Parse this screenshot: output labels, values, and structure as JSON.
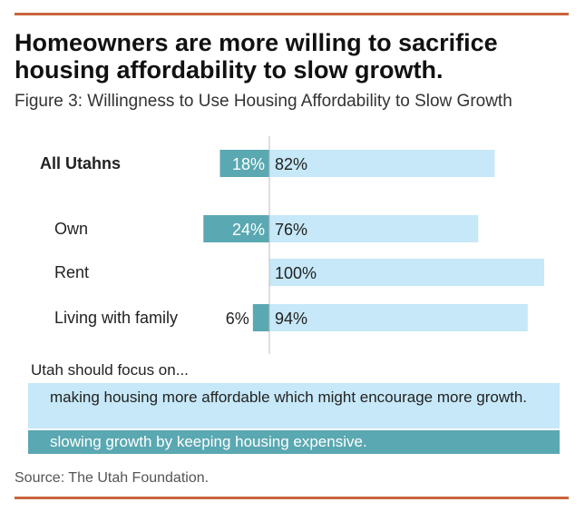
{
  "header": {
    "title": "Homeowners are more willing to sacrifice housing affordability to slow growth.",
    "subtitle": "Figure 3: Willingness to Use Housing Affordability to Slow Growth"
  },
  "chart_data": {
    "type": "bar",
    "orientation": "horizontal",
    "stacked": "diverging",
    "categories": [
      "All Utahns",
      "Own",
      "Rent",
      "Living with family"
    ],
    "series": [
      {
        "name": "slowing growth by keeping housing expensive.",
        "values": [
          18,
          24,
          0,
          6
        ],
        "labels": [
          "18%",
          "24%",
          "",
          "6%"
        ],
        "color": "#5aa8b1"
      },
      {
        "name": "making housing more affordable which might encourage more growth.",
        "values": [
          82,
          76,
          100,
          94
        ],
        "labels": [
          "82%",
          "76%",
          "100%",
          "94%"
        ],
        "color": "#c6e8f8"
      }
    ],
    "xlim": [
      -35,
      100
    ],
    "grid": false,
    "legend_placement": "bottom"
  },
  "legend": {
    "title": "Utah should focus on..."
  },
  "source": "Source: The Utah Foundation."
}
